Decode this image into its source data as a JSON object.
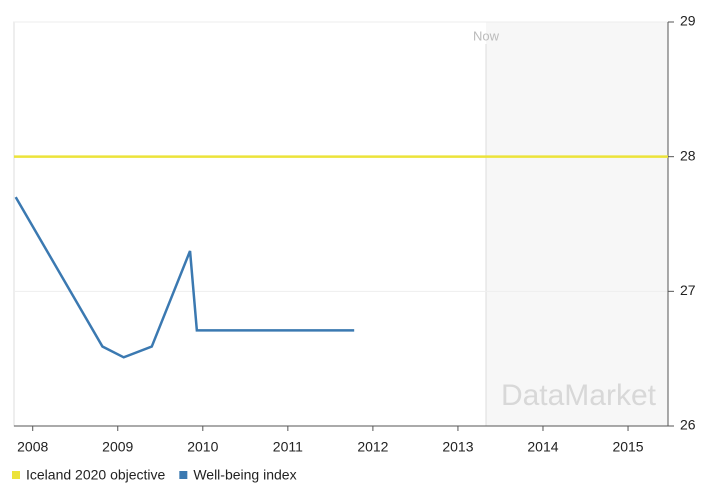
{
  "chart_data": {
    "type": "line",
    "series": [
      {
        "name": "Iceland 2020 objective",
        "color": "#ece33a",
        "x": [
          2007.78,
          2015.47
        ],
        "values": [
          28,
          28
        ]
      },
      {
        "name": "Well-being index",
        "color": "#3b79b1",
        "x": [
          2007.8,
          2008.82,
          2009.07,
          2009.4,
          2009.85,
          2009.93,
          2011.78
        ],
        "values": [
          27.7,
          26.59,
          26.51,
          26.59,
          27.3,
          26.71,
          26.71
        ]
      }
    ],
    "xlim": [
      2007.78,
      2015.47
    ],
    "xticks": [
      2008,
      2009,
      2010,
      2011,
      2012,
      2013,
      2014,
      2015
    ],
    "ylim": [
      26,
      29
    ],
    "yticks": [
      26,
      27,
      28,
      29
    ],
    "grid": true,
    "now": {
      "label": "Now",
      "x": 2013.33
    },
    "watermark": "DataMarket"
  }
}
